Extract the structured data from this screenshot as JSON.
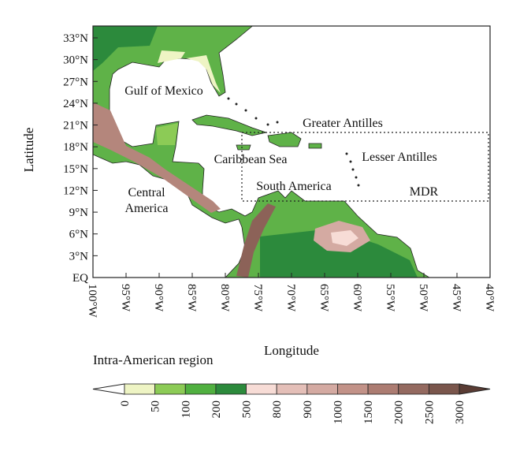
{
  "map": {
    "lat_ticks": [
      "33°N",
      "30°N",
      "27°N",
      "24°N",
      "21°N",
      "18°N",
      "15°N",
      "12°N",
      "9°N",
      "6°N",
      "3°N",
      "EQ"
    ],
    "lon_ticks": [
      "100°W",
      "95°W",
      "90°W",
      "85°W",
      "80°W",
      "75°W",
      "70°W",
      "65°W",
      "60°W",
      "55°W",
      "50°W",
      "45°W",
      "40°W"
    ],
    "x_label": "Longitude",
    "y_label": "Latitude",
    "places": [
      {
        "lines": [
          "Gulf of Mexico"
        ]
      },
      {
        "lines": [
          "Greater Antilles"
        ]
      },
      {
        "lines": [
          "Caribbean Sea"
        ]
      },
      {
        "lines": [
          "Lesser Antilles"
        ]
      },
      {
        "lines": [
          "South America"
        ]
      },
      {
        "lines": [
          "MDR"
        ]
      },
      {
        "lines": [
          "Central",
          "America"
        ]
      }
    ]
  },
  "colorbar": {
    "title": "Intra-American region",
    "labels": [
      0,
      50,
      100,
      200,
      500,
      800,
      900,
      1000,
      1500,
      2000,
      2500,
      3000
    ],
    "colors": [
      "#ffffff",
      "#eef4c4",
      "#8ccb56",
      "#50b040",
      "#2c8a3c",
      "#f7dcd6",
      "#e4bfb8",
      "#d4aaa2",
      "#c29288",
      "#ac7c72",
      "#946a60",
      "#7a564c",
      "#5a3c34"
    ]
  }
}
